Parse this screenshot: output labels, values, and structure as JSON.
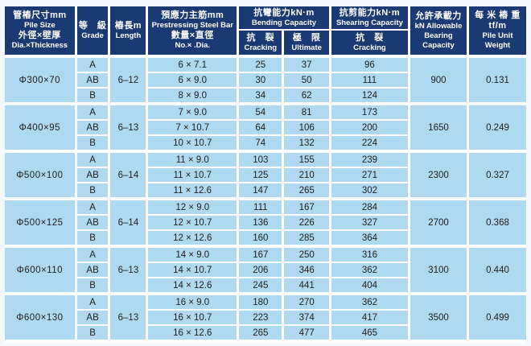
{
  "headers": {
    "pile_size": [
      "管樁尺寸mm",
      "Pile Size",
      "外徑×壁厚",
      "Dia.×Thickness"
    ],
    "grade": [
      "等　級",
      "Grade"
    ],
    "length": [
      "樁長m",
      "Length"
    ],
    "steel_bar": [
      "預應力主筋mm",
      "Prestressing Steel Bar",
      "數量×直徑",
      "No.× .Dia."
    ],
    "bending": [
      "抗彎能力kN·m",
      "Bending Capacity"
    ],
    "bending_cracking": [
      "抗　裂",
      "Cracking"
    ],
    "bending_ultimate": [
      "極　限",
      "Ultimate"
    ],
    "shearing": [
      "抗剪能力kN·m",
      "Shearing Capacity"
    ],
    "shearing_cracking": [
      "抗　裂",
      "Cracking"
    ],
    "bearing": [
      "允許承載力",
      "kN Allowable",
      "Bearing",
      "Capacity"
    ],
    "unit_weight": [
      "每 米 樁 重 tf/m",
      "Pile Unit Weight"
    ]
  },
  "groups": [
    {
      "size": "Φ300×70",
      "length": "6–12",
      "bearing": "900",
      "weight": "0.131",
      "rows": [
        {
          "grade": "A",
          "bar": "6 × 7.1",
          "crack": "25",
          "ult": "37",
          "shear": "96"
        },
        {
          "grade": "AB",
          "bar": "6 × 9.0",
          "crack": "30",
          "ult": "50",
          "shear": "111"
        },
        {
          "grade": "B",
          "bar": "8 × 9.0",
          "crack": "34",
          "ult": "62",
          "shear": "124"
        }
      ]
    },
    {
      "size": "Φ400×95",
      "length": "6–13",
      "bearing": "1650",
      "weight": "0.249",
      "rows": [
        {
          "grade": "A",
          "bar": "7 × 9.0",
          "crack": "54",
          "ult": "81",
          "shear": "173"
        },
        {
          "grade": "AB",
          "bar": "7 × 10.7",
          "crack": "64",
          "ult": "106",
          "shear": "200"
        },
        {
          "grade": "B",
          "bar": "10 × 10.7",
          "crack": "74",
          "ult": "132",
          "shear": "224"
        }
      ]
    },
    {
      "size": "Φ500×100",
      "length": "6–14",
      "bearing": "2300",
      "weight": "0.327",
      "rows": [
        {
          "grade": "A",
          "bar": "11 × 9.0",
          "crack": "103",
          "ult": "155",
          "shear": "239"
        },
        {
          "grade": "AB",
          "bar": "11 × 10.7",
          "crack": "125",
          "ult": "210",
          "shear": "271"
        },
        {
          "grade": "B",
          "bar": "11 × 12.6",
          "crack": "147",
          "ult": "265",
          "shear": "302"
        }
      ]
    },
    {
      "size": "Φ500×125",
      "length": "6–14",
      "bearing": "2700",
      "weight": "0.368",
      "rows": [
        {
          "grade": "A",
          "bar": "12 × 9.0",
          "crack": "111",
          "ult": "167",
          "shear": "284"
        },
        {
          "grade": "AB",
          "bar": "12 × 10.7",
          "crack": "136",
          "ult": "226",
          "shear": "327"
        },
        {
          "grade": "B",
          "bar": "12 × 12.6",
          "crack": "160",
          "ult": "285",
          "shear": "364"
        }
      ]
    },
    {
      "size": "Φ600×110",
      "length": "6–13",
      "bearing": "3100",
      "weight": "0.440",
      "rows": [
        {
          "grade": "A",
          "bar": "14 × 9.0",
          "crack": "167",
          "ult": "250",
          "shear": "316"
        },
        {
          "grade": "AB",
          "bar": "14 × 10.7",
          "crack": "206",
          "ult": "346",
          "shear": "362"
        },
        {
          "grade": "B",
          "bar": "14 × 12.6",
          "crack": "245",
          "ult": "441",
          "shear": "404"
        }
      ]
    },
    {
      "size": "Φ600×130",
      "length": "6–13",
      "bearing": "3500",
      "weight": "0.499",
      "rows": [
        {
          "grade": "A",
          "bar": "16 × 9.0",
          "crack": "180",
          "ult": "270",
          "shear": "362"
        },
        {
          "grade": "AB",
          "bar": "16 × 10.7",
          "crack": "223",
          "ult": "374",
          "shear": "417"
        },
        {
          "grade": "B",
          "bar": "16 × 12.6",
          "crack": "265",
          "ult": "477",
          "shear": "465"
        }
      ]
    }
  ],
  "colors": {
    "header_bg": "#1a3a74",
    "cell_bg": "#aed9f0",
    "grid": "#ffffff",
    "page_bg": "#f3f9fd",
    "header_text": "#ffffff",
    "body_text": "#1d1d1d"
  }
}
